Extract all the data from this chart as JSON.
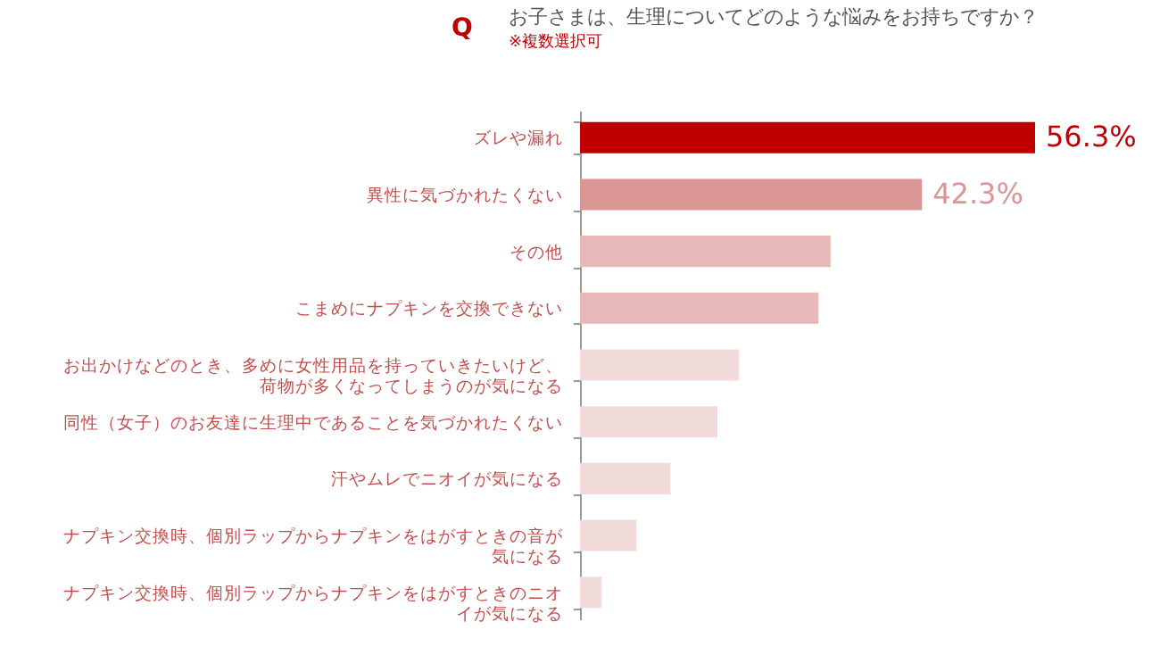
{
  "chart_data": {
    "type": "bar",
    "orientation": "horizontal",
    "title": "お子さまは、生理についてどのような悩みをお持ちですか？",
    "subtitle": "※複数選択可",
    "annotations": [
      "Q"
    ],
    "categories": [
      "ズレや漏れ",
      "異性に気づかれたくない",
      "その他",
      "こまめにナプキンを交換できない",
      "お出かけなどのとき、多めに女性用品を持っていきたいけど、荷物が多くなってしまうのが気になる",
      "同性（女子）のお友達に生理中であることを気づかれたくない",
      "汗やムレでニオイが気になる",
      "ナプキン交換時、個別ラップからナプキンをはがすときの音が気になる",
      "ナプキン交換時、個別ラップからナプキンをはがすときのニオイが気になる"
    ],
    "values": [
      56.3,
      42.3,
      31.0,
      29.5,
      19.7,
      17.0,
      11.2,
      7.0,
      2.7
    ],
    "value_labels": [
      "56.3%",
      "42.3%",
      null,
      null,
      null,
      null,
      null,
      null,
      null
    ],
    "colors": [
      "#c00000",
      "#d99694",
      "#e6b8b7",
      "#e6b8b7",
      "#f2dcdb",
      "#f2dcdb",
      "#f2dcdb",
      "#f2dcdb",
      "#f2dcdb"
    ]
  }
}
